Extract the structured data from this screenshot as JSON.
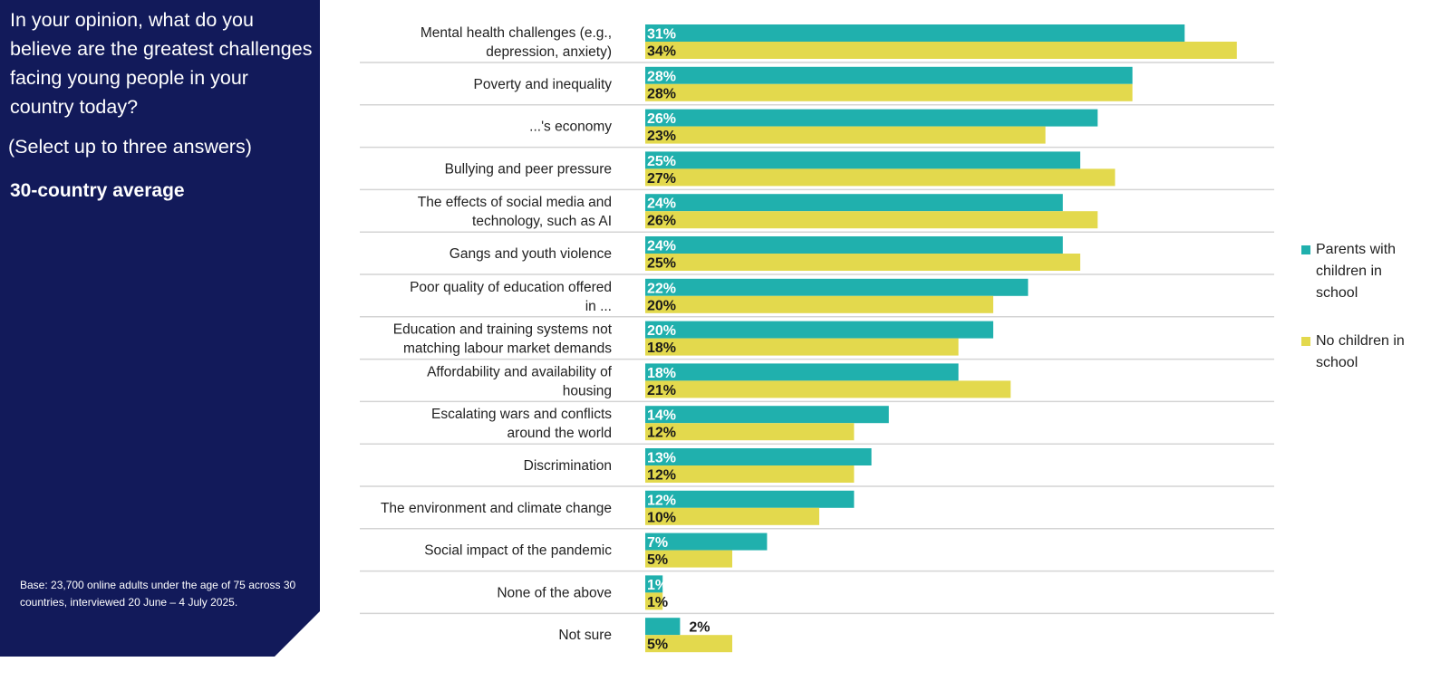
{
  "panel": {
    "question": "In your opinion, what do you believe are the greatest challenges facing young people in your country today?",
    "instruction": "(Select up to three answers)",
    "subtitle": "30-country average",
    "base_note": "Base: 23,700 online adults under the age of 75 across 30 countries, interviewed 20 June – 4 July 2025."
  },
  "chart_data": {
    "type": "bar",
    "orientation": "horizontal",
    "title": "In your opinion, what do you believe are the greatest challenges facing young people in your country today?",
    "categories": [
      "Mental health challenges (e.g., depression, anxiety)",
      "Poverty and inequality",
      "...'s economy",
      "Bullying and peer pressure",
      "The effects of social media and technology, such as AI",
      "Gangs and youth violence",
      "Poor quality of education offered in ...",
      "Education and training systems not matching labour market demands",
      "Affordability and availability of housing",
      "Escalating wars and conflicts around the world",
      "Discrimination",
      "The environment and climate change",
      "Social impact of the pandemic",
      "None of the above",
      "Not sure"
    ],
    "series": [
      {
        "name": "Parents with children in school",
        "color": "#20b0ad",
        "label_color": "#ffffff",
        "values": [
          31,
          28,
          26,
          25,
          24,
          24,
          22,
          20,
          18,
          14,
          13,
          12,
          7,
          1,
          2
        ]
      },
      {
        "name": "No children in school",
        "color": "#e3d94d",
        "label_color": "#1a1a1a",
        "values": [
          34,
          28,
          23,
          27,
          26,
          25,
          20,
          18,
          21,
          12,
          12,
          10,
          5,
          1,
          5
        ]
      }
    ],
    "unit": "%",
    "xlim": [
      0,
      35
    ],
    "legend_position": "right",
    "grid": false
  }
}
